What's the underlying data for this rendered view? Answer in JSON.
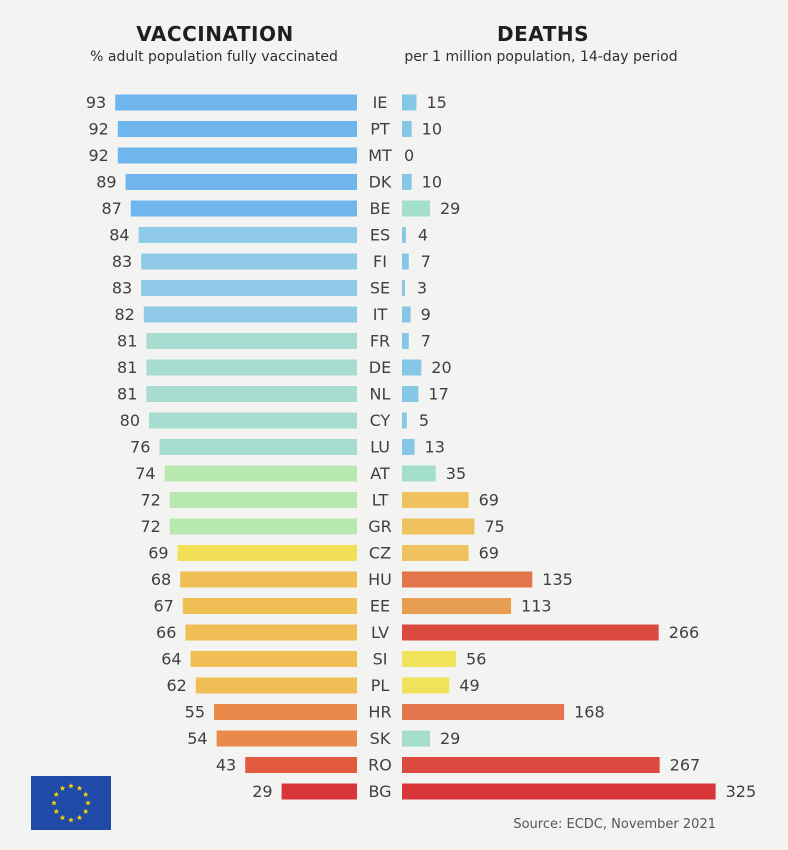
{
  "header": {
    "left_title": "VACCINATION",
    "left_subtitle": "% adult population fully vaccinated",
    "right_title": "DEATHS",
    "right_subtitle": "per 1 million population, 14-day period"
  },
  "footer": {
    "source": "Source: ECDC, November 2021"
  },
  "logo": {
    "icon": "eu-flag-icon",
    "colors": {
      "field": "#1f4aa8",
      "stars": "#ffd200"
    }
  },
  "colors": {
    "vaccination_scale": [
      "#6fb5ee",
      "#8fcbe8",
      "#a6ddd0",
      "#b7e8b0",
      "#f2df56",
      "#efbf56",
      "#ea8a4a",
      "#e25a3f",
      "#d9363a"
    ],
    "deaths_scale": [
      "#86c7e6",
      "#a3dfcb",
      "#f0e25a",
      "#efc25e",
      "#e79e52",
      "#e2754b",
      "#dc4a3f",
      "#d9363a"
    ]
  },
  "chart_data": {
    "type": "bar",
    "layout": "butterfly",
    "categories": [
      "IE",
      "PT",
      "MT",
      "DK",
      "BE",
      "ES",
      "FI",
      "SE",
      "IT",
      "FR",
      "DE",
      "NL",
      "CY",
      "LU",
      "AT",
      "LT",
      "GR",
      "CZ",
      "HU",
      "EE",
      "LV",
      "SI",
      "PL",
      "HR",
      "SK",
      "RO",
      "BG"
    ],
    "series": [
      {
        "name": "VACCINATION",
        "values": [
          93,
          92,
          92,
          89,
          87,
          84,
          83,
          83,
          82,
          81,
          81,
          81,
          80,
          76,
          74,
          72,
          72,
          69,
          68,
          67,
          66,
          64,
          62,
          55,
          54,
          43,
          29
        ]
      },
      {
        "name": "DEATHS",
        "values": [
          15,
          10,
          0,
          10,
          29,
          4,
          7,
          3,
          9,
          7,
          20,
          17,
          5,
          13,
          35,
          69,
          75,
          69,
          135,
          113,
          266,
          56,
          49,
          168,
          29,
          267,
          325
        ]
      }
    ],
    "xlabel": "",
    "ylabel": "",
    "grid": false,
    "legend": "none"
  }
}
